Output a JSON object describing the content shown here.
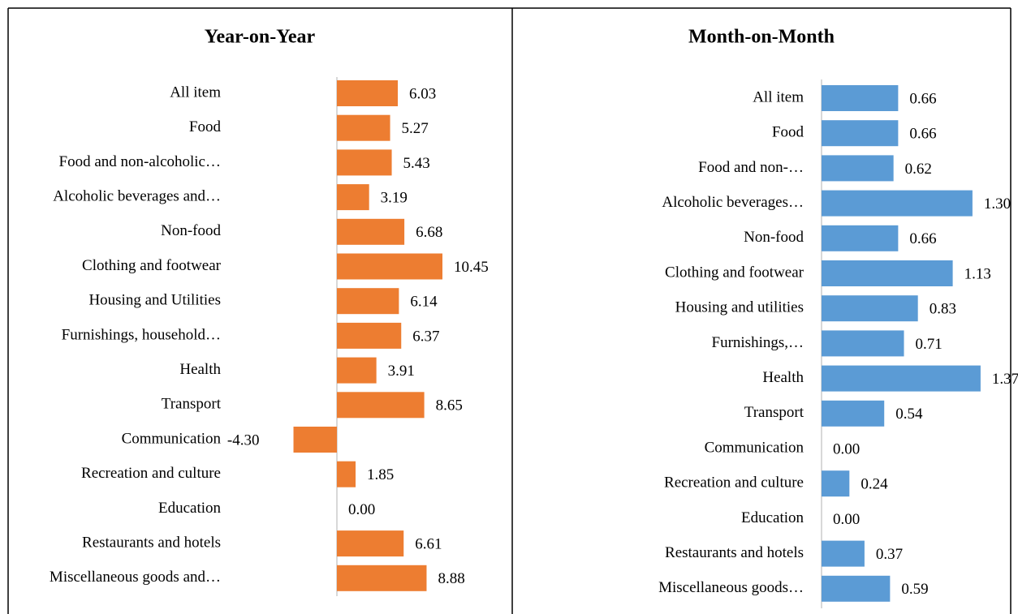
{
  "chart_data": [
    {
      "type": "bar",
      "orientation": "horizontal",
      "title": "Year-on-Year",
      "color": "#ed7d31",
      "categories": [
        "All item",
        "Food",
        "Food and non-alcoholic…",
        "Alcoholic beverages and…",
        "Non-food",
        "Clothing and footwear",
        "Housing and Utilities",
        "Furnishings, household…",
        "Health",
        "Transport",
        "Communication",
        "Recreation and culture",
        "Education",
        "Restaurants and hotels",
        "Miscellaneous goods and…"
      ],
      "values": [
        6.03,
        5.27,
        5.43,
        3.19,
        6.68,
        10.45,
        6.14,
        6.37,
        3.91,
        8.65,
        -4.3,
        1.85,
        0.0,
        6.61,
        8.88
      ],
      "value_labels": [
        "6.03",
        "5.27",
        "5.43",
        "3.19",
        "6.68",
        "10.45",
        "6.14",
        "6.37",
        "3.91",
        "8.65",
        "-4.30",
        "1.85",
        "0.00",
        "6.61",
        "8.88"
      ]
    },
    {
      "type": "bar",
      "orientation": "horizontal",
      "title": "Month-on-Month",
      "color": "#5b9bd5",
      "categories": [
        "All item",
        "Food",
        "Food and non-…",
        "Alcoholic beverages…",
        "Non-food",
        "Clothing and footwear",
        "Housing and utilities",
        "Furnishings,…",
        "Health",
        "Transport",
        "Communication",
        "Recreation and culture",
        "Education",
        "Restaurants and hotels",
        "Miscellaneous goods…"
      ],
      "values": [
        0.66,
        0.66,
        0.62,
        1.3,
        0.66,
        1.13,
        0.83,
        0.71,
        1.37,
        0.54,
        0.0,
        0.24,
        0.0,
        0.37,
        0.59
      ],
      "value_labels": [
        "0.66",
        "0.66",
        "0.62",
        "1.30",
        "0.66",
        "1.13",
        "0.83",
        "0.71",
        "1.37",
        "0.54",
        "0.00",
        "0.24",
        "0.00",
        "0.37",
        "0.59"
      ]
    }
  ]
}
